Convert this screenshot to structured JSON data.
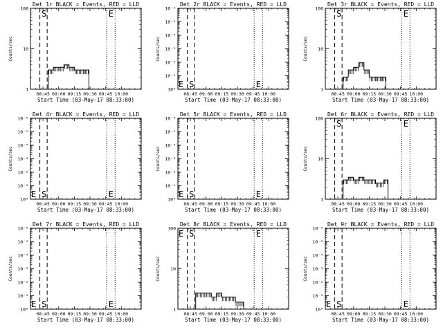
{
  "figure": {
    "x_tick_labels": [
      "08:45",
      "09:00",
      "09:15",
      "09:30",
      "09:45",
      "10:00"
    ],
    "y_axis_label": "Counts/sec",
    "start_marker": "S",
    "end_marker": "E"
  },
  "chart_data": [
    {
      "type": "line",
      "title": "Det 1r BLACK = Events, RED = LLD",
      "xlabel": "Start Time (03-May-17 08:33:00)",
      "ylabel": "Counts/sec",
      "y_scale": "log",
      "y_tick_labels": [
        "1",
        "10",
        "100"
      ],
      "ylim": [
        1,
        100
      ],
      "xlim_minutes": [
        0,
        106
      ],
      "vlines_dashed_minutes": [
        9,
        16
      ],
      "vlines_dotted_minutes": [
        73,
        81
      ],
      "markers": [
        {
          "text": "S",
          "x_minutes": 10
        },
        {
          "text": "E",
          "x_minutes": 74
        }
      ],
      "series": [
        {
          "x_minutes": [
            17,
            22,
            27,
            32,
            37,
            42,
            46,
            52
          ],
          "values": [
            3,
            3.5,
            3.5,
            4,
            3.5,
            3,
            3,
            3
          ]
        }
      ]
    },
    {
      "type": "line",
      "title": "Det 2r BLACK = Events, RED = LLD",
      "xlabel": "Start Time (03-May-17 08:33:00)",
      "ylabel": "Counts/sec",
      "y_scale": "log",
      "y_tick_labels": [
        "10⁰",
        "10⁻¹",
        "10⁻²",
        "10⁻³",
        "10⁻⁴",
        "10⁻⁵",
        "10⁻⁶"
      ],
      "ylim": [
        1,
        1e-06
      ],
      "xlim_minutes": [
        0,
        106
      ],
      "vlines_dashed_minutes": [
        9,
        16
      ],
      "vlines_dotted_minutes": [
        73,
        81
      ],
      "markers": [
        {
          "text": "E",
          "x_minutes": 0
        },
        {
          "text": "S",
          "x_minutes": 10
        },
        {
          "text": "E",
          "x_minutes": 74
        }
      ],
      "series": []
    },
    {
      "type": "line",
      "title": "Det 3r BLACK = Events, RED = LLD",
      "xlabel": "Start Time (03-May-17 08:33:00)",
      "ylabel": "Counts/sec",
      "y_scale": "log",
      "y_tick_labels": [
        "1",
        "10",
        "100"
      ],
      "ylim": [
        1,
        100
      ],
      "xlim_minutes": [
        0,
        106
      ],
      "vlines_dashed_minutes": [
        9,
        16
      ],
      "vlines_dotted_minutes": [
        73,
        81
      ],
      "markers": [
        {
          "text": "S",
          "x_minutes": 10
        },
        {
          "text": "E",
          "x_minutes": 74
        }
      ],
      "series": [
        {
          "x_minutes": [
            17,
            22,
            27,
            32,
            37,
            42,
            48,
            54
          ],
          "values": [
            2,
            3,
            3.5,
            4.5,
            3,
            2,
            2,
            2
          ]
        }
      ]
    },
    {
      "type": "line",
      "title": "Det 4r BLACK = Events, RED = LLD",
      "xlabel": "Start Time (03-May-17 08:33:00)",
      "ylabel": "Counts/sec",
      "y_scale": "log",
      "y_tick_labels": [
        "10⁰",
        "10⁻¹",
        "10⁻²",
        "10⁻³",
        "10⁻⁴",
        "10⁻⁵",
        "10⁻⁶"
      ],
      "ylim": [
        1,
        1e-06
      ],
      "xlim_minutes": [
        0,
        106
      ],
      "vlines_dashed_minutes": [
        9,
        16
      ],
      "vlines_dotted_minutes": [
        73,
        81
      ],
      "markers": [
        {
          "text": "E",
          "x_minutes": 0
        },
        {
          "text": "S",
          "x_minutes": 10
        },
        {
          "text": "E",
          "x_minutes": 74
        }
      ],
      "series": []
    },
    {
      "type": "line",
      "title": "Det 5r BLACK = Events, RED = LLD",
      "xlabel": "Start Time (03-May-17 08:33:00)",
      "ylabel": "Counts/sec",
      "y_scale": "log",
      "y_tick_labels": [
        "10⁰",
        "10⁻¹",
        "10⁻²",
        "10⁻³",
        "10⁻⁴",
        "10⁻⁵",
        "10⁻⁶"
      ],
      "ylim": [
        1,
        1e-06
      ],
      "xlim_minutes": [
        0,
        106
      ],
      "vlines_dashed_minutes": [
        9,
        16
      ],
      "vlines_dotted_minutes": [
        73,
        81
      ],
      "markers": [
        {
          "text": "E",
          "x_minutes": 0
        },
        {
          "text": "S",
          "x_minutes": 10
        },
        {
          "text": "E",
          "x_minutes": 74
        }
      ],
      "series": []
    },
    {
      "type": "line",
      "title": "Det 6r BLACK = Events, RED = LLD",
      "xlabel": "Start Time (03-May-17 08:33:00)",
      "ylabel": "Counts/sec",
      "y_scale": "log",
      "y_tick_labels": [
        "1",
        "10",
        "100"
      ],
      "ylim": [
        1,
        100
      ],
      "xlim_minutes": [
        0,
        106
      ],
      "vlines_dashed_minutes": [
        9,
        16
      ],
      "vlines_dotted_minutes": [
        73,
        81
      ],
      "markers": [
        {
          "text": "S",
          "x_minutes": 10
        },
        {
          "text": "E",
          "x_minutes": 74
        }
      ],
      "series": [
        {
          "x_minutes": [
            17,
            22,
            27,
            32,
            37,
            42,
            48,
            52,
            56
          ],
          "values": [
            3,
            3.5,
            3,
            3.5,
            3,
            3,
            2.5,
            2.5,
            3
          ]
        }
      ]
    },
    {
      "type": "line",
      "title": "Det 7r BLACK = Events, RED = LLD",
      "xlabel": "Start Time (03-May-17 08:33:00)",
      "ylabel": "Counts/sec",
      "y_scale": "log",
      "y_tick_labels": [
        "10⁰",
        "10⁻¹",
        "10⁻²",
        "10⁻³",
        "10⁻⁴",
        "10⁻⁵",
        "10⁻⁶"
      ],
      "ylim": [
        1,
        1e-06
      ],
      "xlim_minutes": [
        0,
        106
      ],
      "vlines_dashed_minutes": [
        9,
        16
      ],
      "vlines_dotted_minutes": [
        73,
        81
      ],
      "markers": [
        {
          "text": "E",
          "x_minutes": 0
        },
        {
          "text": "S",
          "x_minutes": 10
        },
        {
          "text": "E",
          "x_minutes": 74
        }
      ],
      "series": []
    },
    {
      "type": "line",
      "title": "Det 8r BLACK = Events, RED = LLD",
      "xlabel": "Start Time (03-May-17 08:33:00)",
      "ylabel": "Counts/sec",
      "y_scale": "log",
      "y_tick_labels": [
        "1",
        "10",
        "100"
      ],
      "ylim": [
        1,
        100
      ],
      "xlim_minutes": [
        0,
        106
      ],
      "vlines_dashed_minutes": [
        9,
        16
      ],
      "vlines_dotted_minutes": [
        73,
        81
      ],
      "markers": [
        {
          "text": "E",
          "x_minutes": 0
        },
        {
          "text": "S",
          "x_minutes": 10
        },
        {
          "text": "E",
          "x_minutes": 74
        }
      ],
      "series": [
        {
          "x_minutes": [
            17,
            22,
            27,
            32,
            37,
            42,
            46,
            50,
            55,
            59
          ],
          "values": [
            2.5,
            2.5,
            2.5,
            2,
            2.5,
            2,
            2,
            2,
            1.5,
            1.5
          ]
        }
      ]
    },
    {
      "type": "line",
      "title": "Det 9r BLACK = Events, RED = LLD",
      "xlabel": "Start Time (03-May-17 08:33:00)",
      "ylabel": "Counts/sec",
      "y_scale": "log",
      "y_tick_labels": [
        "10⁰",
        "10⁻¹",
        "10⁻²",
        "10⁻³",
        "10⁻⁴",
        "10⁻⁵",
        "10⁻⁶"
      ],
      "ylim": [
        1,
        1e-06
      ],
      "xlim_minutes": [
        0,
        106
      ],
      "vlines_dashed_minutes": [
        9,
        16
      ],
      "vlines_dotted_minutes": [
        73,
        81
      ],
      "markers": [
        {
          "text": "E",
          "x_minutes": 0
        },
        {
          "text": "S",
          "x_minutes": 10
        },
        {
          "text": "E",
          "x_minutes": 74
        }
      ],
      "series": []
    }
  ]
}
